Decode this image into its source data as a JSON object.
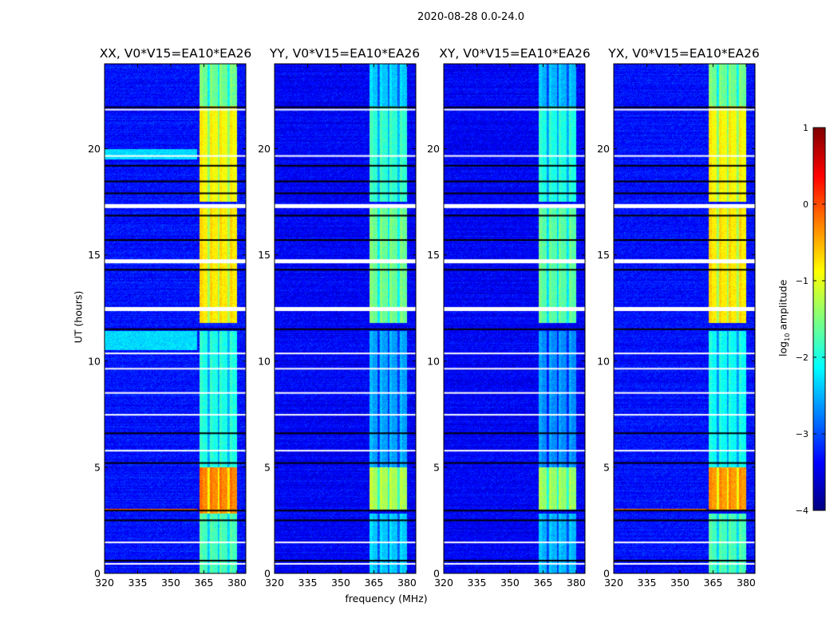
{
  "suptitle": "2020-08-28 0.0-24.0",
  "xlabel": "frequency (MHz)",
  "ylabel": "UT (hours)",
  "colorbar": {
    "label_prefix": "log",
    "label_sub": "10",
    "label_suffix": " amplitude",
    "range": [
      -4,
      1
    ],
    "ticks": [
      1,
      0,
      -1,
      -2,
      -3,
      -4
    ],
    "tick_labels": [
      "1",
      "0",
      "−1",
      "−2",
      "−3",
      "−4"
    ],
    "colormap": "jet"
  },
  "chart_data": [
    {
      "type": "heatmap",
      "title": "XX, V0*V15=EA10*EA26",
      "xlim": [
        320,
        384
      ],
      "ylim": [
        0,
        24
      ],
      "background_level": -3.3,
      "band_freq": [
        363,
        380
      ],
      "band_regions": [
        [
          0,
          2.8,
          -1.8
        ],
        [
          2.8,
          3.0,
          -0.4
        ],
        [
          3.0,
          5.0,
          -0.3
        ],
        [
          5.0,
          11.4,
          -2.0
        ],
        [
          11.8,
          17.2,
          -0.8
        ],
        [
          17.5,
          22.0,
          -0.9
        ],
        [
          22.0,
          24.0,
          -1.6
        ]
      ],
      "broadband_regions": [
        [
          19.5,
          20.0,
          -2.3
        ],
        [
          10.5,
          11.4,
          -2.3
        ],
        [
          2.95,
          3.05,
          -0.1
        ]
      ]
    },
    {
      "type": "heatmap",
      "title": "YY, V0*V15=EA10*EA26",
      "xlim": [
        320,
        384
      ],
      "ylim": [
        0,
        24
      ],
      "background_level": -3.4,
      "band_freq": [
        363,
        380
      ],
      "band_regions": [
        [
          0,
          2.8,
          -2.4
        ],
        [
          3.0,
          5.0,
          -1.3
        ],
        [
          5.0,
          11.4,
          -2.6
        ],
        [
          11.8,
          17.2,
          -1.6
        ],
        [
          17.5,
          22.0,
          -1.9
        ],
        [
          22.0,
          24.0,
          -2.4
        ]
      ],
      "broadband_regions": []
    },
    {
      "type": "heatmap",
      "title": "XY, V0*V15=EA10*EA26",
      "xlim": [
        320,
        384
      ],
      "ylim": [
        0,
        24
      ],
      "background_level": -3.4,
      "band_freq": [
        363,
        380
      ],
      "band_regions": [
        [
          0,
          2.8,
          -2.5
        ],
        [
          3.0,
          5.0,
          -1.4
        ],
        [
          5.0,
          11.4,
          -2.7
        ],
        [
          11.8,
          17.2,
          -1.7
        ],
        [
          17.5,
          22.0,
          -2.0
        ],
        [
          22.0,
          24.0,
          -2.5
        ]
      ],
      "broadband_regions": []
    },
    {
      "type": "heatmap",
      "title": "YX, V0*V15=EA10*EA26",
      "xlim": [
        320,
        384
      ],
      "ylim": [
        0,
        24
      ],
      "background_level": -3.3,
      "band_freq": [
        363,
        380
      ],
      "band_regions": [
        [
          0,
          2.8,
          -1.8
        ],
        [
          3.0,
          5.0,
          -0.4
        ],
        [
          5.0,
          11.4,
          -2.1
        ],
        [
          11.8,
          17.2,
          -0.8
        ],
        [
          17.5,
          22.0,
          -0.9
        ],
        [
          22.0,
          24.0,
          -1.6
        ]
      ],
      "broadband_regions": [
        [
          2.95,
          3.05,
          -0.2
        ]
      ]
    }
  ],
  "axes": {
    "xticks": [
      320,
      335,
      350,
      365,
      380
    ],
    "xtick_labels": [
      "320",
      "335",
      "350",
      "365",
      "380"
    ],
    "yticks": [
      0,
      5,
      10,
      15,
      20
    ],
    "ytick_labels": [
      "0",
      "5",
      "10",
      "15",
      "20"
    ]
  },
  "flagged_hours_white": [
    0.45,
    1.46,
    5.78,
    7.47,
    8.5,
    9.64,
    10.36,
    12.45,
    14.7,
    17.3,
    19.66,
    21.84
  ],
  "flagged_hours_black": [
    0.6,
    2.5,
    2.96,
    5.2,
    6.6,
    11.5,
    14.3,
    15.7,
    16.85,
    17.9,
    18.46,
    19.2,
    21.95
  ]
}
